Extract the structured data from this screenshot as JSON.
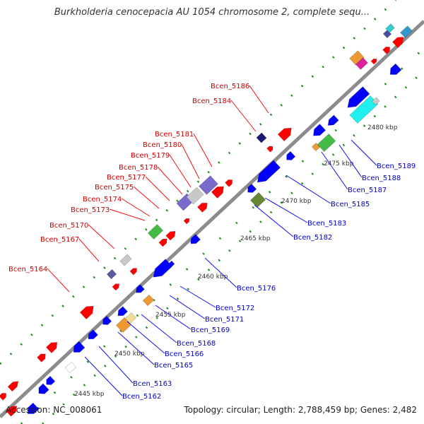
{
  "title": "Burkholderia cenocepacia AU 1054 chromosome 2, complete sequ...",
  "footer": {
    "accession": "Accession: NC_008061",
    "topology": "Topology: circular; Length: 2,788,459 bp; Genes: 2,482"
  },
  "colors": {
    "backbone": "#8c8c8c",
    "tick": "#1b8a1b",
    "forward_label": "#d00000",
    "reverse_label": "#0000c8",
    "forward_gene": "#ff0000",
    "reverse_gene": "#0000ff"
  },
  "kbp_ticks": [
    "2445 kbp",
    "2450 kbp",
    "2455 kbp",
    "2460 kbp",
    "2465 kbp",
    "2470 kbp",
    "2475 kbp",
    "2480 kbp"
  ],
  "forward_labels": [
    "Bcen_5164",
    "Bcen_5167",
    "Bcen_5170",
    "Bcen_5173",
    "Bcen_5174",
    "Bcen_5175",
    "Bcen_5177",
    "Bcen_5178",
    "Bcen_5179",
    "Bcen_5180",
    "Bcen_5181",
    "Bcen_5184",
    "Bcen_5186"
  ],
  "reverse_labels": [
    "Bcen_5162",
    "Bcen_5163",
    "Bcen_5165",
    "Bcen_5166",
    "Bcen_5168",
    "Bcen_5169",
    "Bcen_5171",
    "Bcen_5172",
    "Bcen_5176",
    "Bcen_5182",
    "Bcen_5183",
    "Bcen_5185",
    "Bcen_5187",
    "Bcen_5188",
    "Bcen_5189"
  ]
}
